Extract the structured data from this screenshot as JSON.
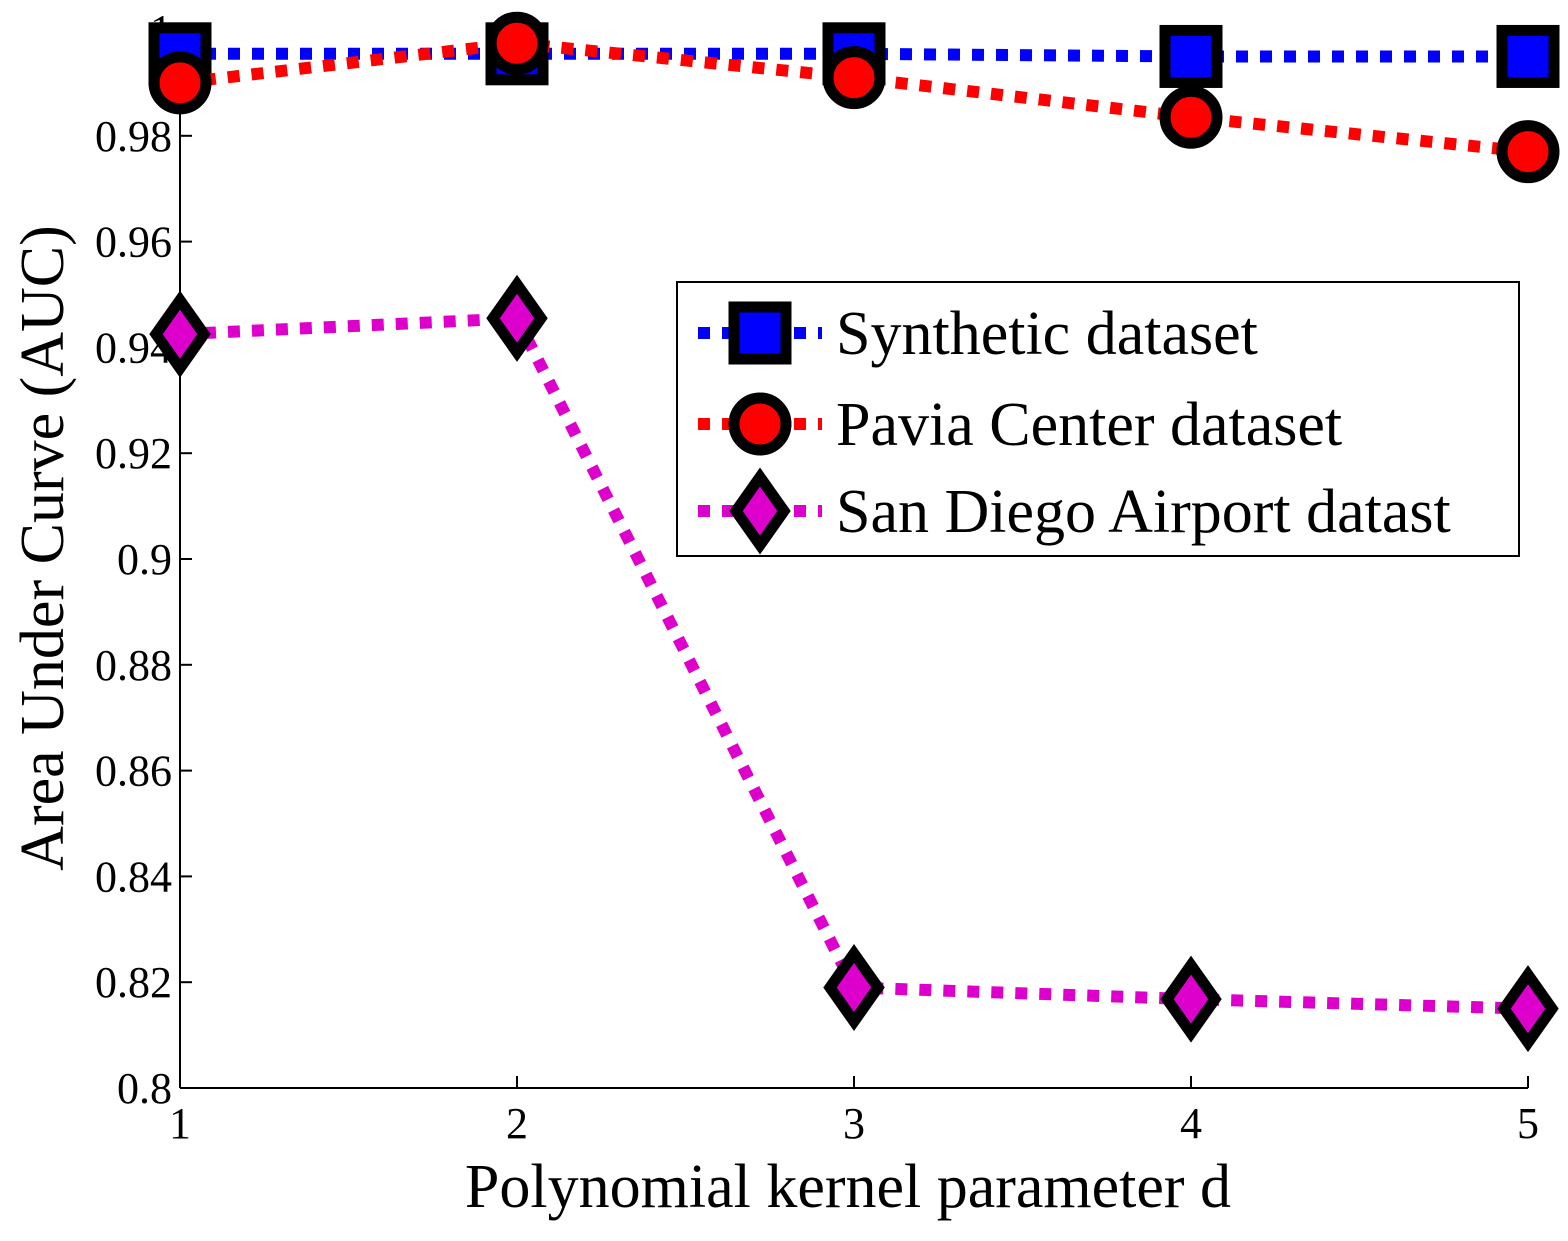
{
  "chart_data": {
    "type": "line",
    "title": "",
    "xlabel": "Polynomial kernel parameter d",
    "ylabel": "Area Under Curve (AUC)",
    "x": [
      1,
      2,
      3,
      4,
      5
    ],
    "xlim": [
      1,
      5
    ],
    "ylim": [
      0.8,
      1.0
    ],
    "xticks": [
      "1",
      "2",
      "3",
      "4",
      "5"
    ],
    "yticks": [
      "0.8",
      "0.82",
      "0.84",
      "0.86",
      "0.88",
      "0.9",
      "0.92",
      "0.94",
      "0.96",
      "0.98",
      "1"
    ],
    "grid": false,
    "legend_position": "center-right",
    "series": [
      {
        "name": "Synthetic dataset",
        "values": [
          0.9955,
          0.9955,
          0.9955,
          0.995,
          0.995
        ],
        "color": "#0000ff",
        "marker": "square",
        "line_style": "dotted"
      },
      {
        "name": "Pavia Center dataset",
        "values": [
          0.99,
          0.9975,
          0.991,
          0.9835,
          0.977
        ],
        "color": "#ff0000",
        "marker": "circle",
        "line_style": "dotted"
      },
      {
        "name": "San Diego Airport datast",
        "values": [
          0.9425,
          0.9455,
          0.819,
          0.8168,
          0.815
        ],
        "color": "#dd00cc",
        "marker": "diamond",
        "line_style": "dotted"
      }
    ]
  }
}
